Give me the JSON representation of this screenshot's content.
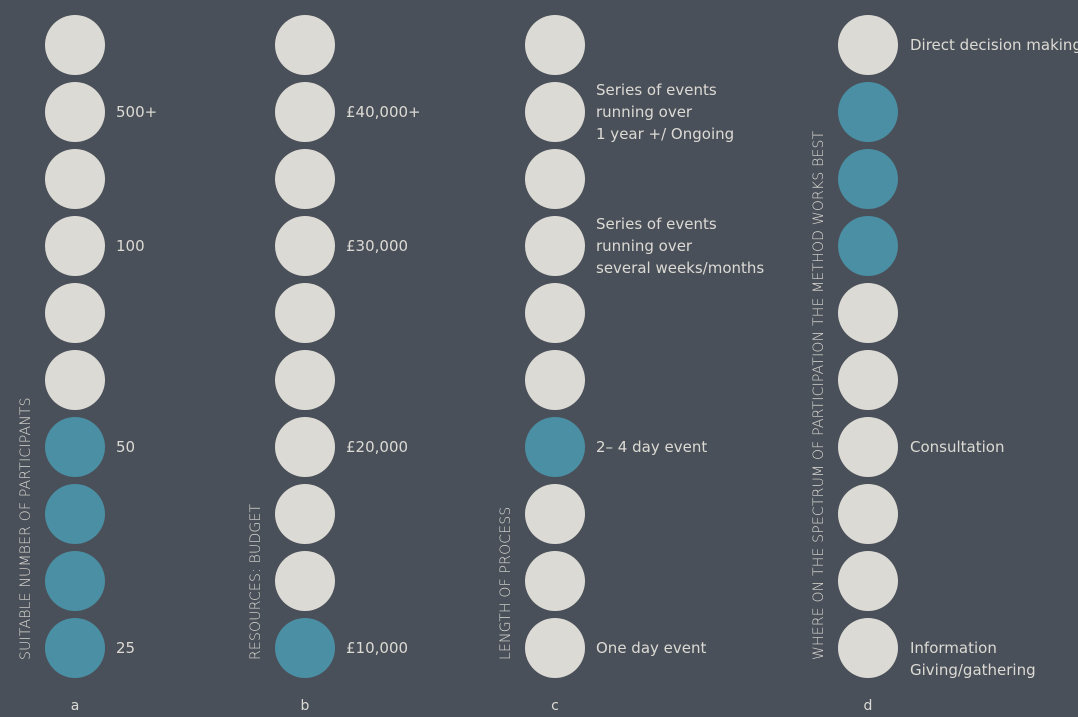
{
  "colors": {
    "background": "#4a5059",
    "inactive_dot": "#dcdad4",
    "active_dot": "#4a8fa3",
    "text": "#dcdad4"
  },
  "columns": [
    {
      "id": "a",
      "title": "SUITABLE NUMBER OF PARTICIPANTS",
      "footer": "a",
      "dots_active": [
        false,
        false,
        false,
        false,
        false,
        false,
        true,
        true,
        true,
        true
      ],
      "labels": [
        {
          "row": 1,
          "text": "500+"
        },
        {
          "row": 3,
          "text": "100"
        },
        {
          "row": 6,
          "text": "50"
        },
        {
          "row": 9,
          "text": "25"
        }
      ]
    },
    {
      "id": "b",
      "title": "RESOURCES: BUDGET",
      "footer": "b",
      "dots_active": [
        false,
        false,
        false,
        false,
        false,
        false,
        false,
        false,
        false,
        true
      ],
      "labels": [
        {
          "row": 1,
          "text": "£40,000+"
        },
        {
          "row": 3,
          "text": "£30,000"
        },
        {
          "row": 6,
          "text": "£20,000"
        },
        {
          "row": 9,
          "text": "£10,000"
        }
      ]
    },
    {
      "id": "c",
      "title": "LENGTH OF PROCESS",
      "footer": "c",
      "dots_active": [
        false,
        false,
        false,
        false,
        false,
        false,
        true,
        false,
        false,
        false
      ],
      "labels": [
        {
          "row": 1,
          "text": "Series of events running over 1 year +/ Ongoing",
          "lines": [
            "Series of events",
            "running over",
            "1 year +/ Ongoing"
          ]
        },
        {
          "row": 3,
          "text": "Series of events running over several weeks/months",
          "lines": [
            "Series of events",
            "running over",
            "several weeks/months"
          ]
        },
        {
          "row": 6,
          "text": "2– 4 day event"
        },
        {
          "row": 9,
          "text": "One day event"
        }
      ]
    },
    {
      "id": "d",
      "title": "WHERE ON THE SPECTRUM OF PARTICIPATION THE METHOD WORKS BEST",
      "footer": "d",
      "dots_active": [
        false,
        true,
        true,
        true,
        false,
        false,
        false,
        false,
        false,
        false
      ],
      "labels": [
        {
          "row": 0,
          "text": "Direct decision making"
        },
        {
          "row": 6,
          "text": "Consultation"
        },
        {
          "row": 9,
          "text": "Information Giving/gathering",
          "lines": [
            "Information",
            "Giving/gathering"
          ],
          "below": true
        }
      ]
    }
  ]
}
